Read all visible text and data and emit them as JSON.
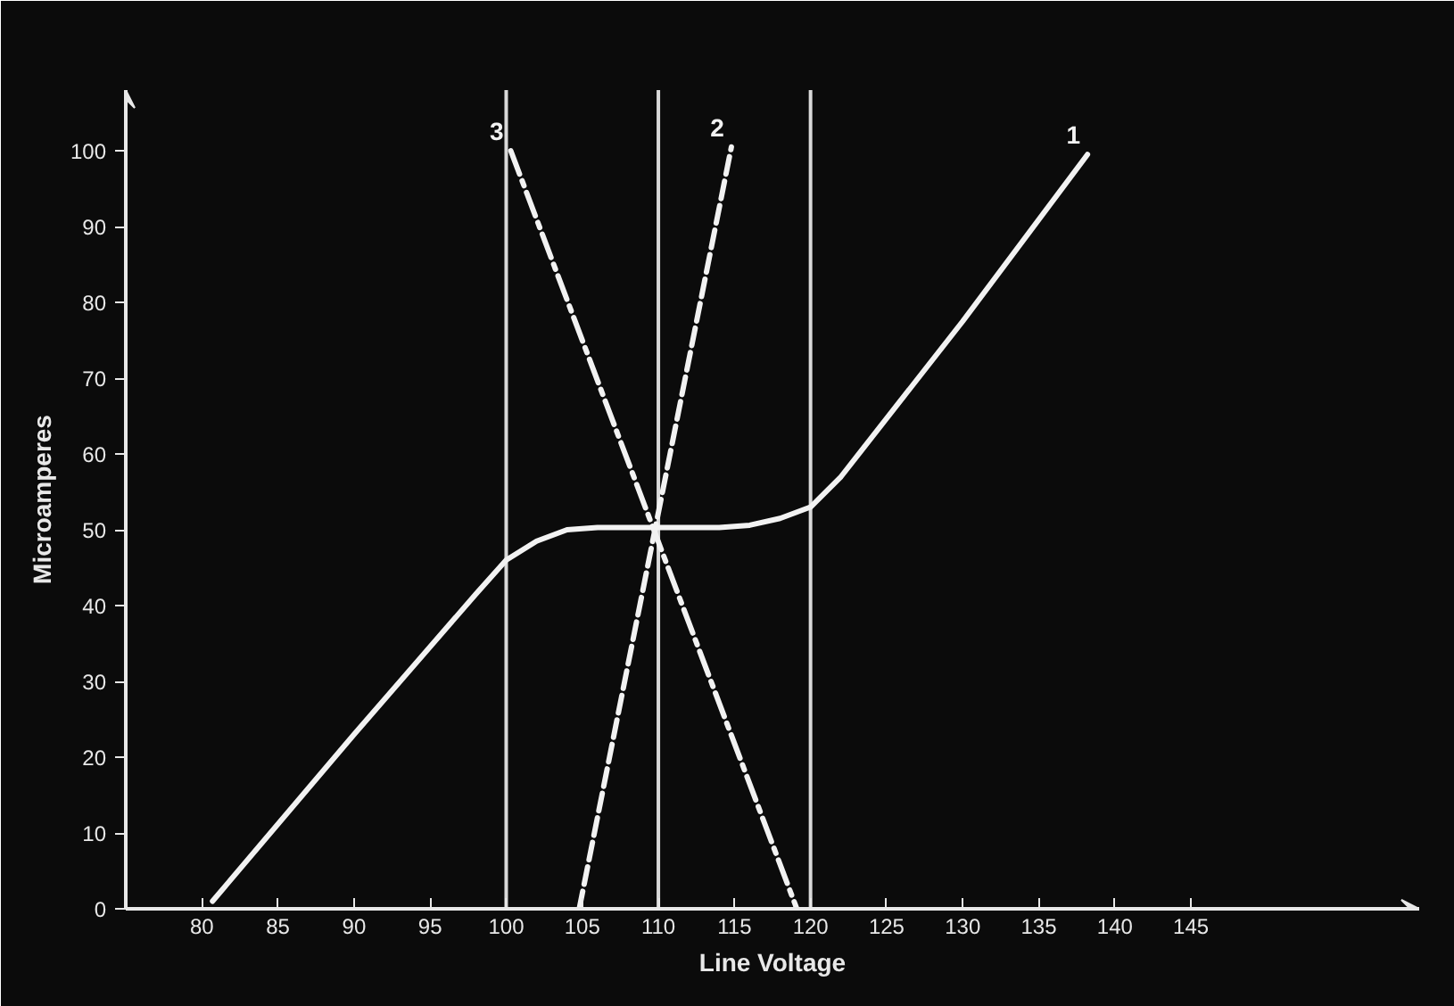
{
  "chart_data": {
    "type": "line",
    "xlabel": "Line Voltage",
    "ylabel": "Microamperes",
    "xlim": [
      75,
      160
    ],
    "ylim": [
      0,
      108
    ],
    "xticks": [
      80,
      85,
      90,
      95,
      100,
      105,
      110,
      115,
      120,
      125,
      130,
      135,
      140,
      145
    ],
    "yticks": [
      0,
      10,
      20,
      30,
      40,
      50,
      60,
      70,
      80,
      90,
      100
    ],
    "grid": false,
    "marker": "none",
    "series": [
      {
        "name": "1",
        "color": "#f2f2f2",
        "line_style": "solid",
        "x": [
          80.7,
          90,
          98,
          100,
          102,
          104,
          106,
          110,
          114,
          116,
          118,
          120,
          122,
          130,
          138.2
        ],
        "values": [
          1,
          23,
          41.5,
          46,
          48.5,
          50,
          50.3,
          50.3,
          50.3,
          50.6,
          51.5,
          53,
          57,
          77.5,
          99.5
        ]
      },
      {
        "name": "2",
        "color": "#f2f2f2",
        "line_style": "dashed",
        "x": [
          104.8,
          114.8
        ],
        "values": [
          0,
          100.5
        ]
      },
      {
        "name": "3",
        "color": "#f2f2f2",
        "line_style": "dashdot",
        "x": [
          100.3,
          119.1
        ],
        "values": [
          100,
          0
        ]
      }
    ],
    "ref_lines": [
      {
        "axis": "x",
        "value": 100,
        "color": "#d9d9d9",
        "line_style": "solid"
      },
      {
        "axis": "x",
        "value": 110,
        "color": "#d9d9d9",
        "line_style": "solid"
      },
      {
        "axis": "x",
        "value": 120,
        "color": "#d9d9d9",
        "line_style": "solid"
      }
    ]
  }
}
